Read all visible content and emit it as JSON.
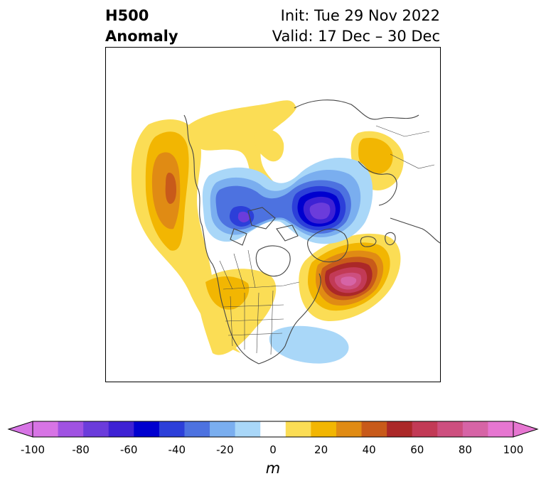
{
  "header": {
    "title_line1": "H500",
    "title_line2": "Anomaly",
    "init": "Init: Tue 29 Nov 2022",
    "valid": "Valid: 17 Dec – 30 Dec"
  },
  "colorbar": {
    "unit": "m",
    "ticks": [
      "-100",
      "-80",
      "-60",
      "-40",
      "-20",
      "0",
      "20",
      "40",
      "60",
      "80",
      "100"
    ],
    "colors": [
      "#d774e5",
      "#a052e2",
      "#6b3cdb",
      "#3e22d4",
      "#0000cf",
      "#2c3fd9",
      "#4d72e0",
      "#7aaeef",
      "#a9d7f8",
      "#ffffff",
      "#fbdd55",
      "#f2b602",
      "#e08b14",
      "#c85a1a",
      "#ab2828",
      "#c23a56",
      "#cd4f7f",
      "#d664a6",
      "#e676d1"
    ],
    "under_color": "#d774e5",
    "over_color": "#e676d1"
  },
  "map": {
    "variable": "500 hPa geopotential height anomaly",
    "projection": "polar stereographic, North America / Arctic"
  }
}
